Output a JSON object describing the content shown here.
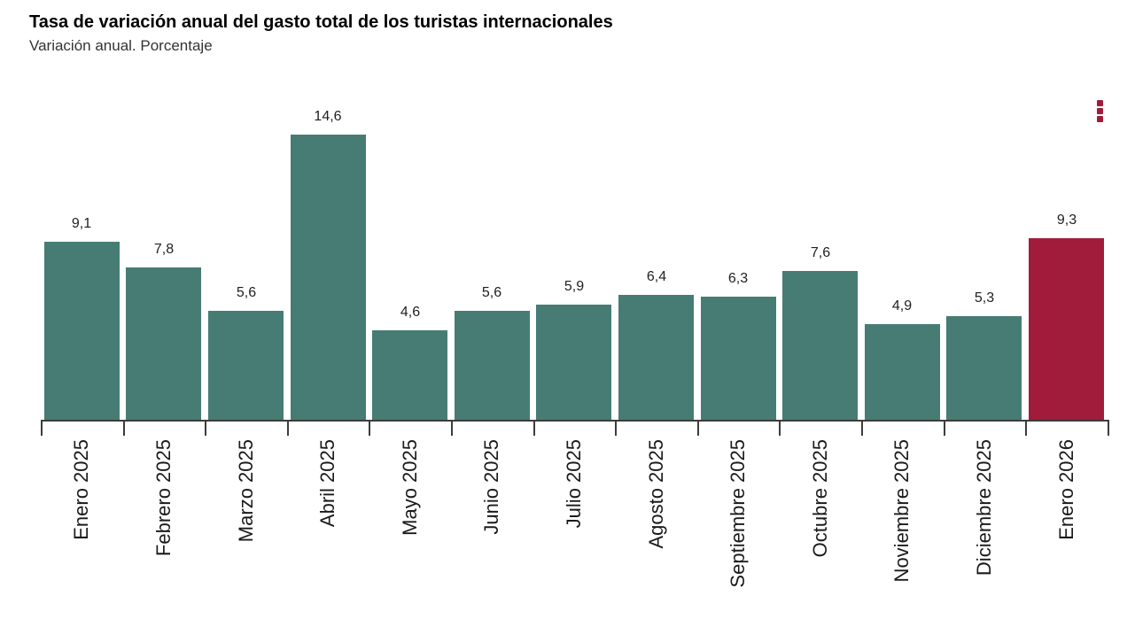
{
  "header": {
    "title": "Tasa de variación anual del gasto total de los turistas internacionales",
    "subtitle": "Variación anual. Porcentaje"
  },
  "menu": {
    "icon": "vertical-dots-icon",
    "color": "#A01C3A"
  },
  "chart_data": {
    "type": "bar",
    "title": "Tasa de variación anual del gasto total de los turistas internacionales",
    "subtitle": "Variación anual. Porcentaje",
    "categories": [
      "Enero 2025",
      "Febrero 2025",
      "Marzo 2025",
      "Abril 2025",
      "Mayo 2025",
      "Junio 2025",
      "Julio 2025",
      "Agosto 2025",
      "Septiembre 2025",
      "Octubre 2025",
      "Noviembre 2025",
      "Diciembre 2025",
      "Enero 2026"
    ],
    "values": [
      9.1,
      7.8,
      5.6,
      14.6,
      4.6,
      5.6,
      5.9,
      6.4,
      6.3,
      7.6,
      4.9,
      5.3,
      9.3
    ],
    "value_labels": [
      "9,1",
      "7,8",
      "5,6",
      "14,6",
      "4,6",
      "5,6",
      "5,9",
      "6,4",
      "6,3",
      "7,6",
      "4,9",
      "5,3",
      "9,3"
    ],
    "xlabel": "",
    "ylabel": "Variación anual (%)",
    "ylim": [
      0,
      15
    ],
    "grid": false,
    "legend": false,
    "bar_color": "#467C74",
    "highlight_color": "#A01C3A",
    "highlight_index": 12,
    "axis_color": "#3c3c3c"
  }
}
